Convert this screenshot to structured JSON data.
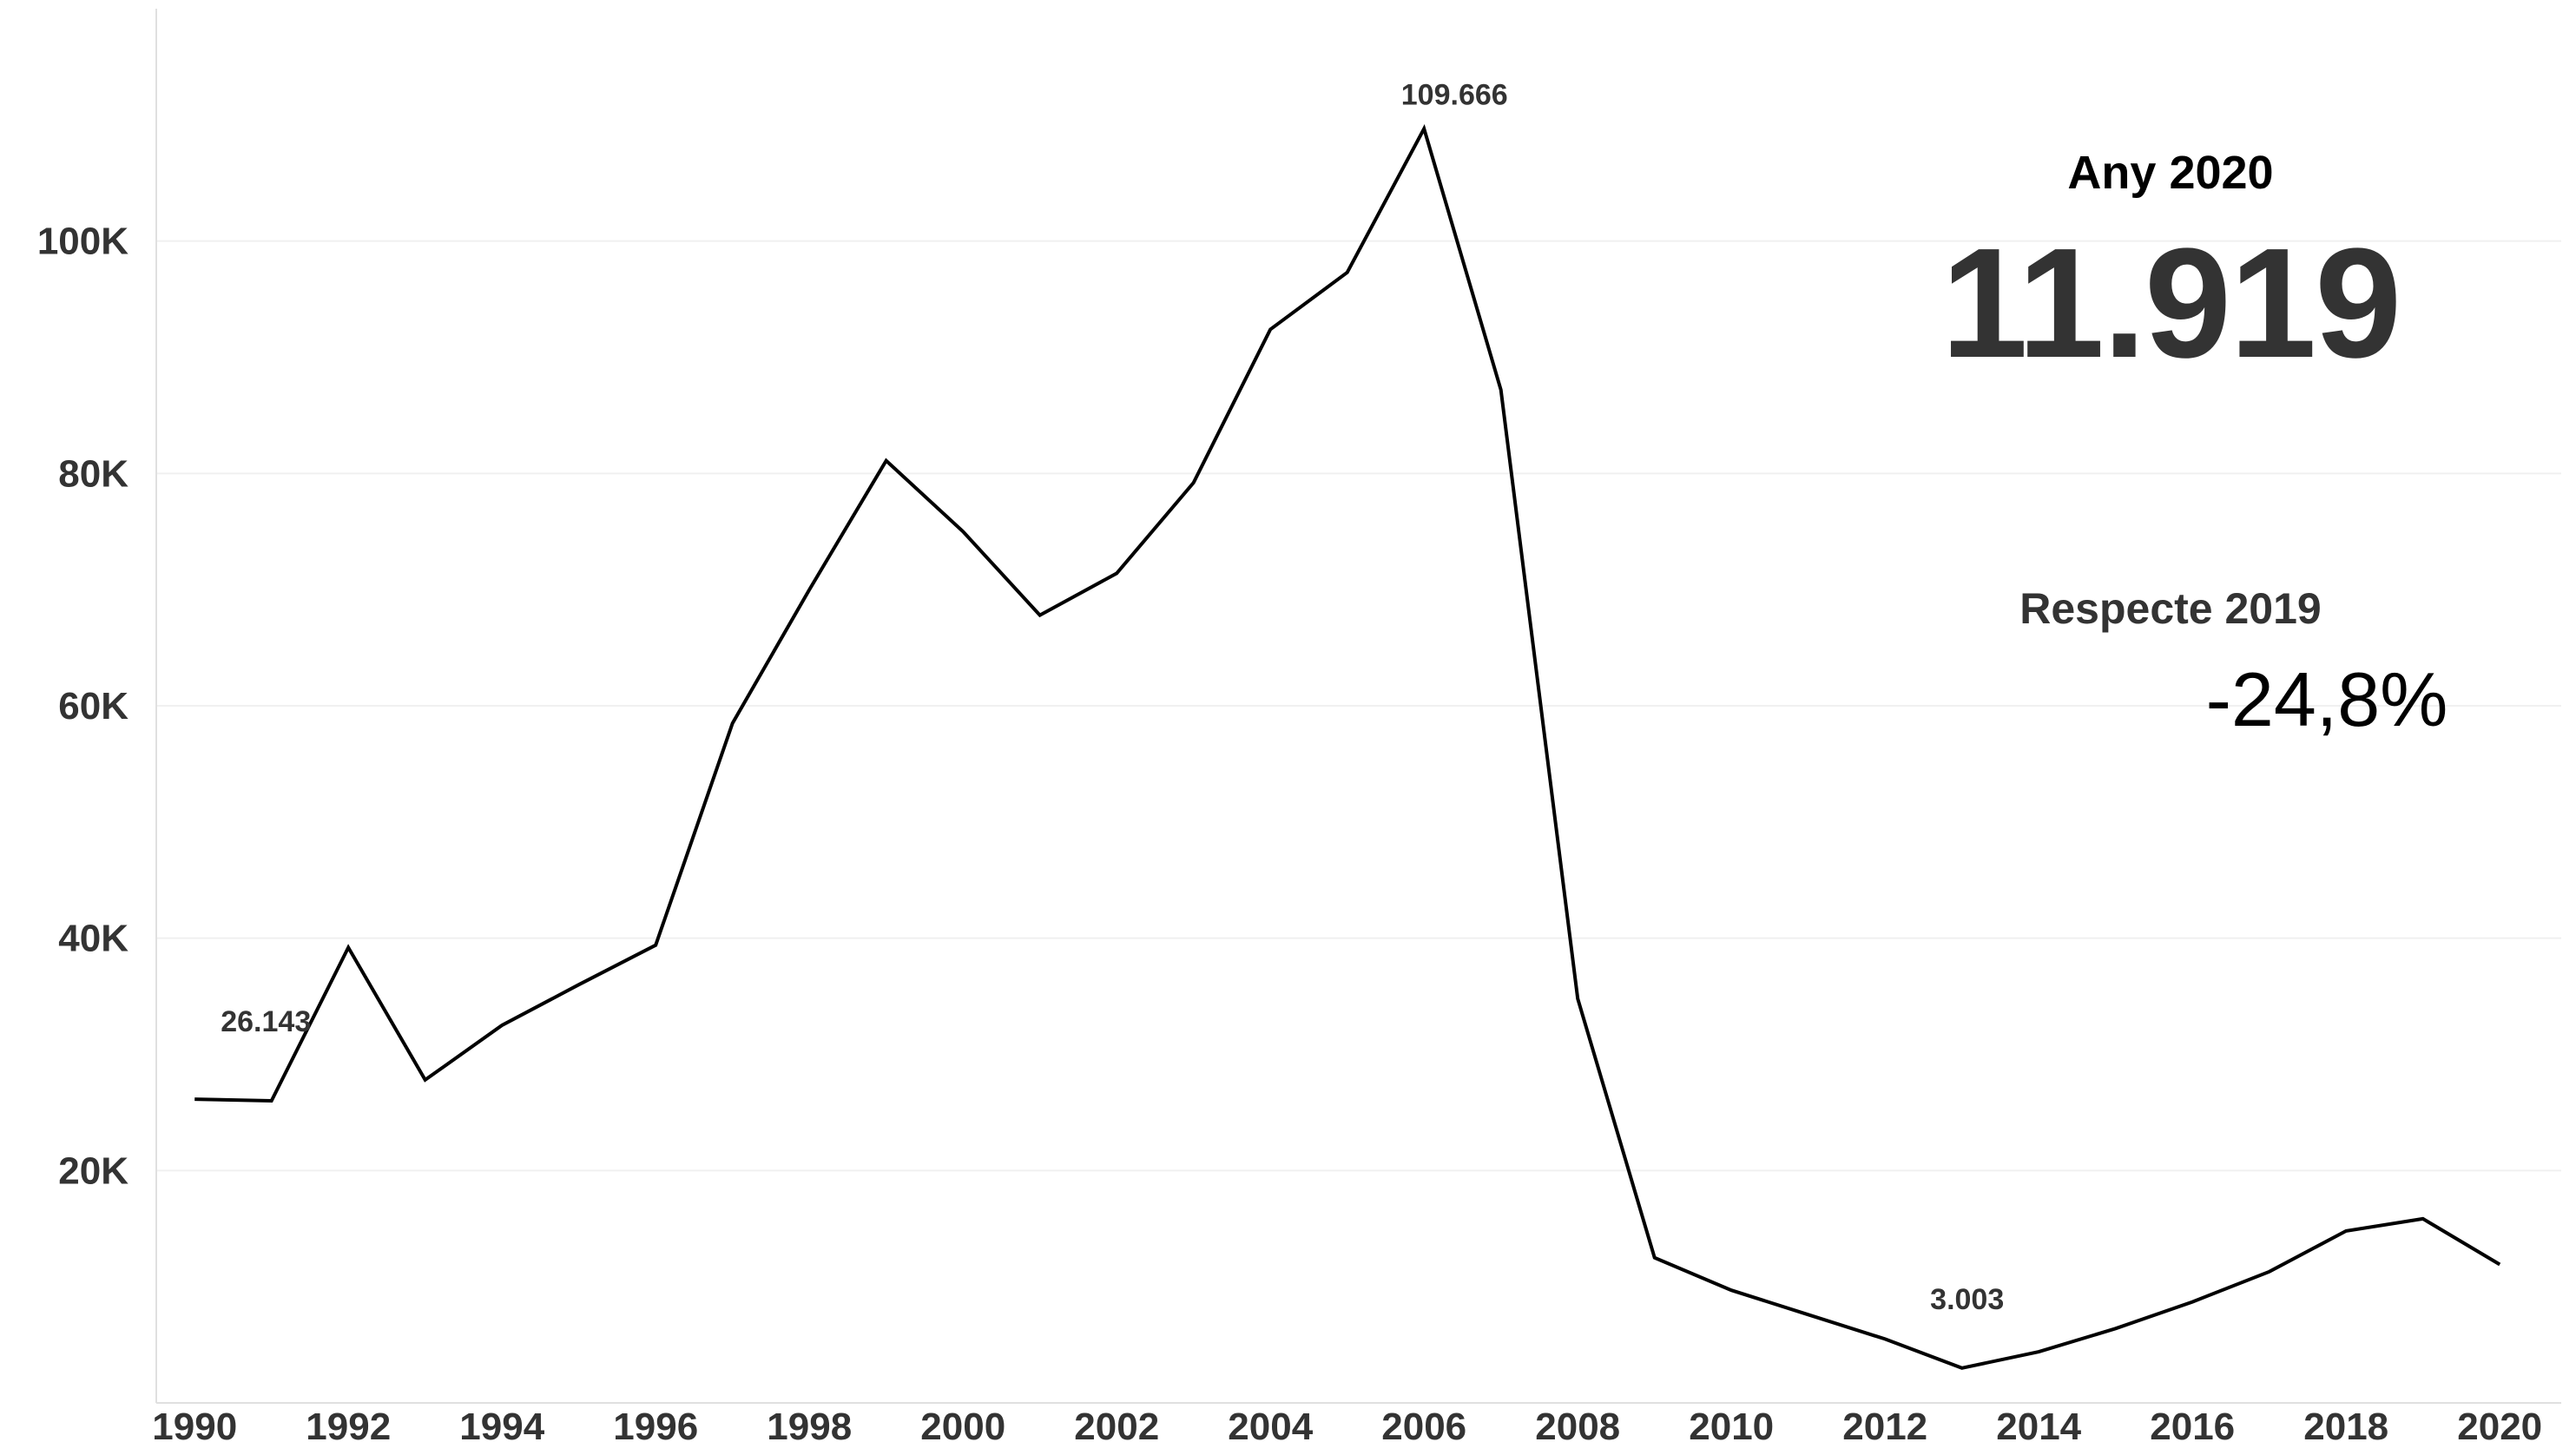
{
  "kpi": {
    "year_label": "Any 2020",
    "value": "11.919",
    "compare_label": "Respecte 2019",
    "change": "-24,8%"
  },
  "chart_data": {
    "type": "line",
    "title": "",
    "xlabel": "",
    "ylabel": "",
    "x": [
      1990,
      1991,
      1992,
      1993,
      1994,
      1995,
      1996,
      1997,
      1998,
      1999,
      2000,
      2001,
      2002,
      2003,
      2004,
      2005,
      2006,
      2007,
      2008,
      2009,
      2010,
      2011,
      2012,
      2013,
      2014,
      2015,
      2016,
      2017,
      2018,
      2019,
      2020
    ],
    "series": [
      {
        "values": [
          26143,
          26000,
          39200,
          27800,
          32500,
          36000,
          39400,
          58500,
          70000,
          81100,
          75000,
          67800,
          71400,
          79200,
          92400,
          97300,
          109666,
          87200,
          34800,
          12500,
          9700,
          7600,
          5500,
          3003,
          4400,
          6400,
          8700,
          11300,
          14800,
          15850,
          11919
        ],
        "color": "#000000"
      }
    ],
    "xlim": [
      1989.5,
      2020.8
    ],
    "ylim": [
      0,
      120000
    ],
    "x_ticks": [
      1990,
      1992,
      1994,
      1996,
      1998,
      2000,
      2002,
      2004,
      2006,
      2008,
      2010,
      2012,
      2014,
      2016,
      2018,
      2020
    ],
    "y_ticks": [
      {
        "value": 20000,
        "label": "20K"
      },
      {
        "value": 40000,
        "label": "40K"
      },
      {
        "value": 60000,
        "label": "60K"
      },
      {
        "value": 80000,
        "label": "80K"
      },
      {
        "value": 100000,
        "label": "100K"
      }
    ],
    "annotations": [
      {
        "x": 1990,
        "y": 26143,
        "text": "26.143"
      },
      {
        "x": 2006,
        "y": 109666,
        "text": "109.666"
      },
      {
        "x": 2013,
        "y": 3003,
        "text": "3.003"
      }
    ],
    "grid": true,
    "gridline_color": "#f0f0f0",
    "axis_color": "#e0e0e0",
    "text_color": "#333333"
  }
}
